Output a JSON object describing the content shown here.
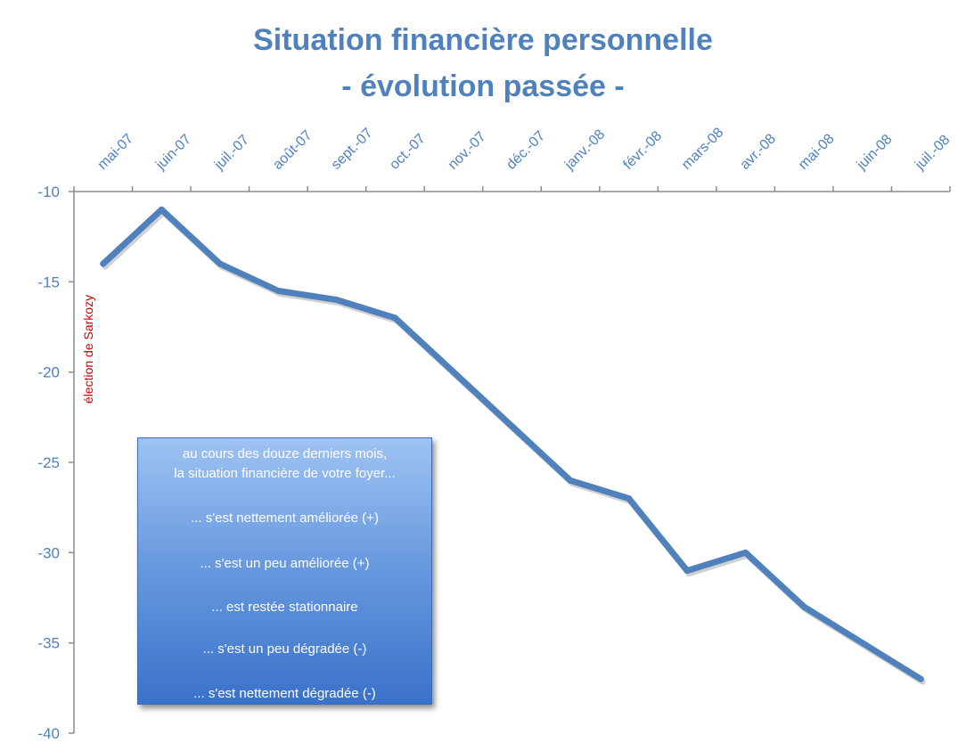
{
  "chart_data": {
    "type": "line",
    "title": "Situation financière personnelle",
    "subtitle": "- évolution passée -",
    "categories": [
      "mai-07",
      "juin-07",
      "juil.-07",
      "août-07",
      "sept.-07",
      "oct.-07",
      "nov.-07",
      "déc.-07",
      "janv.-08",
      "févr.-08",
      "mars-08",
      "avr.-08",
      "mai-08",
      "juin-08",
      "juil.-08"
    ],
    "series": [
      {
        "values": [
          -14,
          -11,
          -14,
          -15.5,
          -16,
          -17,
          -20,
          -23,
          -26,
          -27,
          -31,
          -30,
          -33,
          -35,
          -37
        ]
      }
    ],
    "ylim": [
      -40,
      -10
    ],
    "yticks": [
      -10,
      -15,
      -20,
      -25,
      -30,
      -35,
      -40
    ],
    "x_axis_position": "top",
    "grid": false,
    "annotation": "élection de Sarkozy",
    "legend_box": {
      "header_line1": "au cours des douze derniers mois,",
      "header_line2": "la situation financière de votre foyer...",
      "options": [
        "... s'est nettement améliorée (+)",
        "... s'est un peu améliorée (+)",
        "... est restée stationnaire",
        "... s'est un peu dégradée (-)",
        "... s'est nettement dégradée (-)"
      ]
    },
    "colors": {
      "line": "#4f81bd",
      "text": "#4f81bd",
      "annotation": "#cc0000"
    }
  }
}
